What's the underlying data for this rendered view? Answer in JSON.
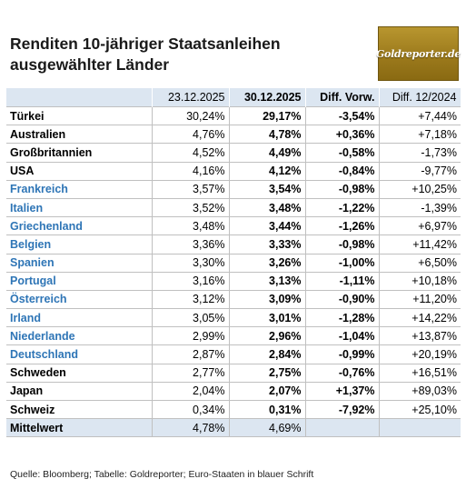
{
  "title_line1": "Renditen 10-jähriger Staatsanleihen",
  "title_line2": "ausgewählter Länder",
  "logo_text": "Goldreporter.de",
  "source": "Quelle: Bloomberg; Tabelle: Goldreporter; Euro-Staaten in blauer Schrift",
  "colors": {
    "header_bg": "#dce6f1",
    "euro_text": "#2e75b6",
    "logo_gold": "#a8861f"
  },
  "chart_data": {
    "type": "table",
    "columns": [
      "",
      "23.12.2025",
      "30.12.2025",
      "Diff. Vorw.",
      "Diff. 12/2024"
    ],
    "rows": [
      {
        "country": "Türkei",
        "euro": false,
        "v1": "30,24%",
        "v2": "29,17%",
        "v3": "-3,54%",
        "v4": "+7,44%"
      },
      {
        "country": "Australien",
        "euro": false,
        "v1": "4,76%",
        "v2": "4,78%",
        "v3": "+0,36%",
        "v4": "+7,18%"
      },
      {
        "country": "Großbritannien",
        "euro": false,
        "v1": "4,52%",
        "v2": "4,49%",
        "v3": "-0,58%",
        "v4": "-1,73%"
      },
      {
        "country": "USA",
        "euro": false,
        "v1": "4,16%",
        "v2": "4,12%",
        "v3": "-0,84%",
        "v4": "-9,77%"
      },
      {
        "country": "Frankreich",
        "euro": true,
        "v1": "3,57%",
        "v2": "3,54%",
        "v3": "-0,98%",
        "v4": "+10,25%"
      },
      {
        "country": "Italien",
        "euro": true,
        "v1": "3,52%",
        "v2": "3,48%",
        "v3": "-1,22%",
        "v4": "-1,39%"
      },
      {
        "country": "Griechenland",
        "euro": true,
        "v1": "3,48%",
        "v2": "3,44%",
        "v3": "-1,26%",
        "v4": "+6,97%"
      },
      {
        "country": "Belgien",
        "euro": true,
        "v1": "3,36%",
        "v2": "3,33%",
        "v3": "-0,98%",
        "v4": "+11,42%"
      },
      {
        "country": "Spanien",
        "euro": true,
        "v1": "3,30%",
        "v2": "3,26%",
        "v3": "-1,00%",
        "v4": "+6,50%"
      },
      {
        "country": "Portugal",
        "euro": true,
        "v1": "3,16%",
        "v2": "3,13%",
        "v3": "-1,11%",
        "v4": "+10,18%"
      },
      {
        "country": "Österreich",
        "euro": true,
        "v1": "3,12%",
        "v2": "3,09%",
        "v3": "-0,90%",
        "v4": "+11,20%"
      },
      {
        "country": "Irland",
        "euro": true,
        "v1": "3,05%",
        "v2": "3,01%",
        "v3": "-1,28%",
        "v4": "+14,22%"
      },
      {
        "country": "Niederlande",
        "euro": true,
        "v1": "2,99%",
        "v2": "2,96%",
        "v3": "-1,04%",
        "v4": "+13,87%"
      },
      {
        "country": "Deutschland",
        "euro": true,
        "v1": "2,87%",
        "v2": "2,84%",
        "v3": "-0,99%",
        "v4": "+20,19%"
      },
      {
        "country": "Schweden",
        "euro": false,
        "v1": "2,77%",
        "v2": "2,75%",
        "v3": "-0,76%",
        "v4": "+16,51%"
      },
      {
        "country": "Japan",
        "euro": false,
        "v1": "2,04%",
        "v2": "2,07%",
        "v3": "+1,37%",
        "v4": "+89,03%"
      },
      {
        "country": "Schweiz",
        "euro": false,
        "v1": "0,34%",
        "v2": "0,31%",
        "v3": "-7,92%",
        "v4": "+25,10%"
      }
    ],
    "average": {
      "label": "Mittelwert",
      "v1": "4,78%",
      "v2": "4,69%",
      "v3": "",
      "v4": ""
    }
  }
}
